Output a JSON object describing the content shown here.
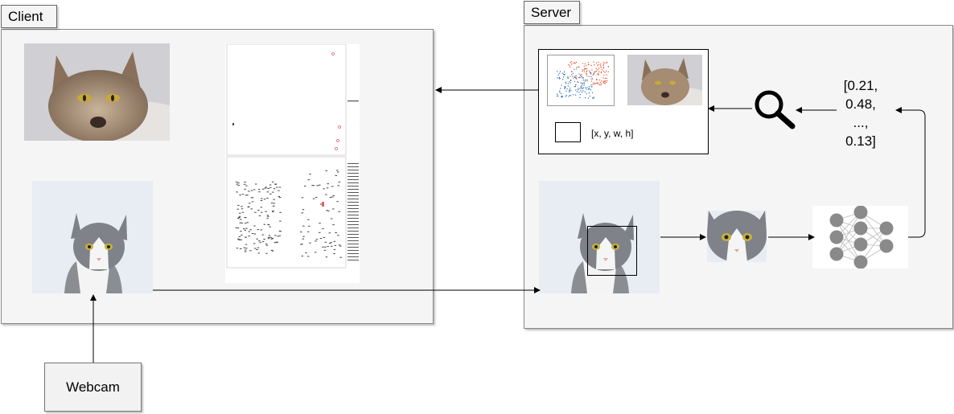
{
  "client": {
    "label": "Client"
  },
  "server": {
    "label": "Server"
  },
  "webcam": {
    "label": "Webcam"
  },
  "result": {
    "bbox_label": "[x, y, w, h]"
  },
  "embedding": {
    "lines": [
      "[0.21,",
      "0.48,",
      "...,",
      "0.13]"
    ]
  },
  "icons": {
    "search": "magnifier-icon",
    "network": "neural-network-icon"
  },
  "colors": {
    "panel": "#f5f5f5",
    "arrow": "#000000",
    "scatter_red": "#e8542c",
    "scatter_blue": "#2c6fb5",
    "nn_node": "#8a8a8a"
  }
}
